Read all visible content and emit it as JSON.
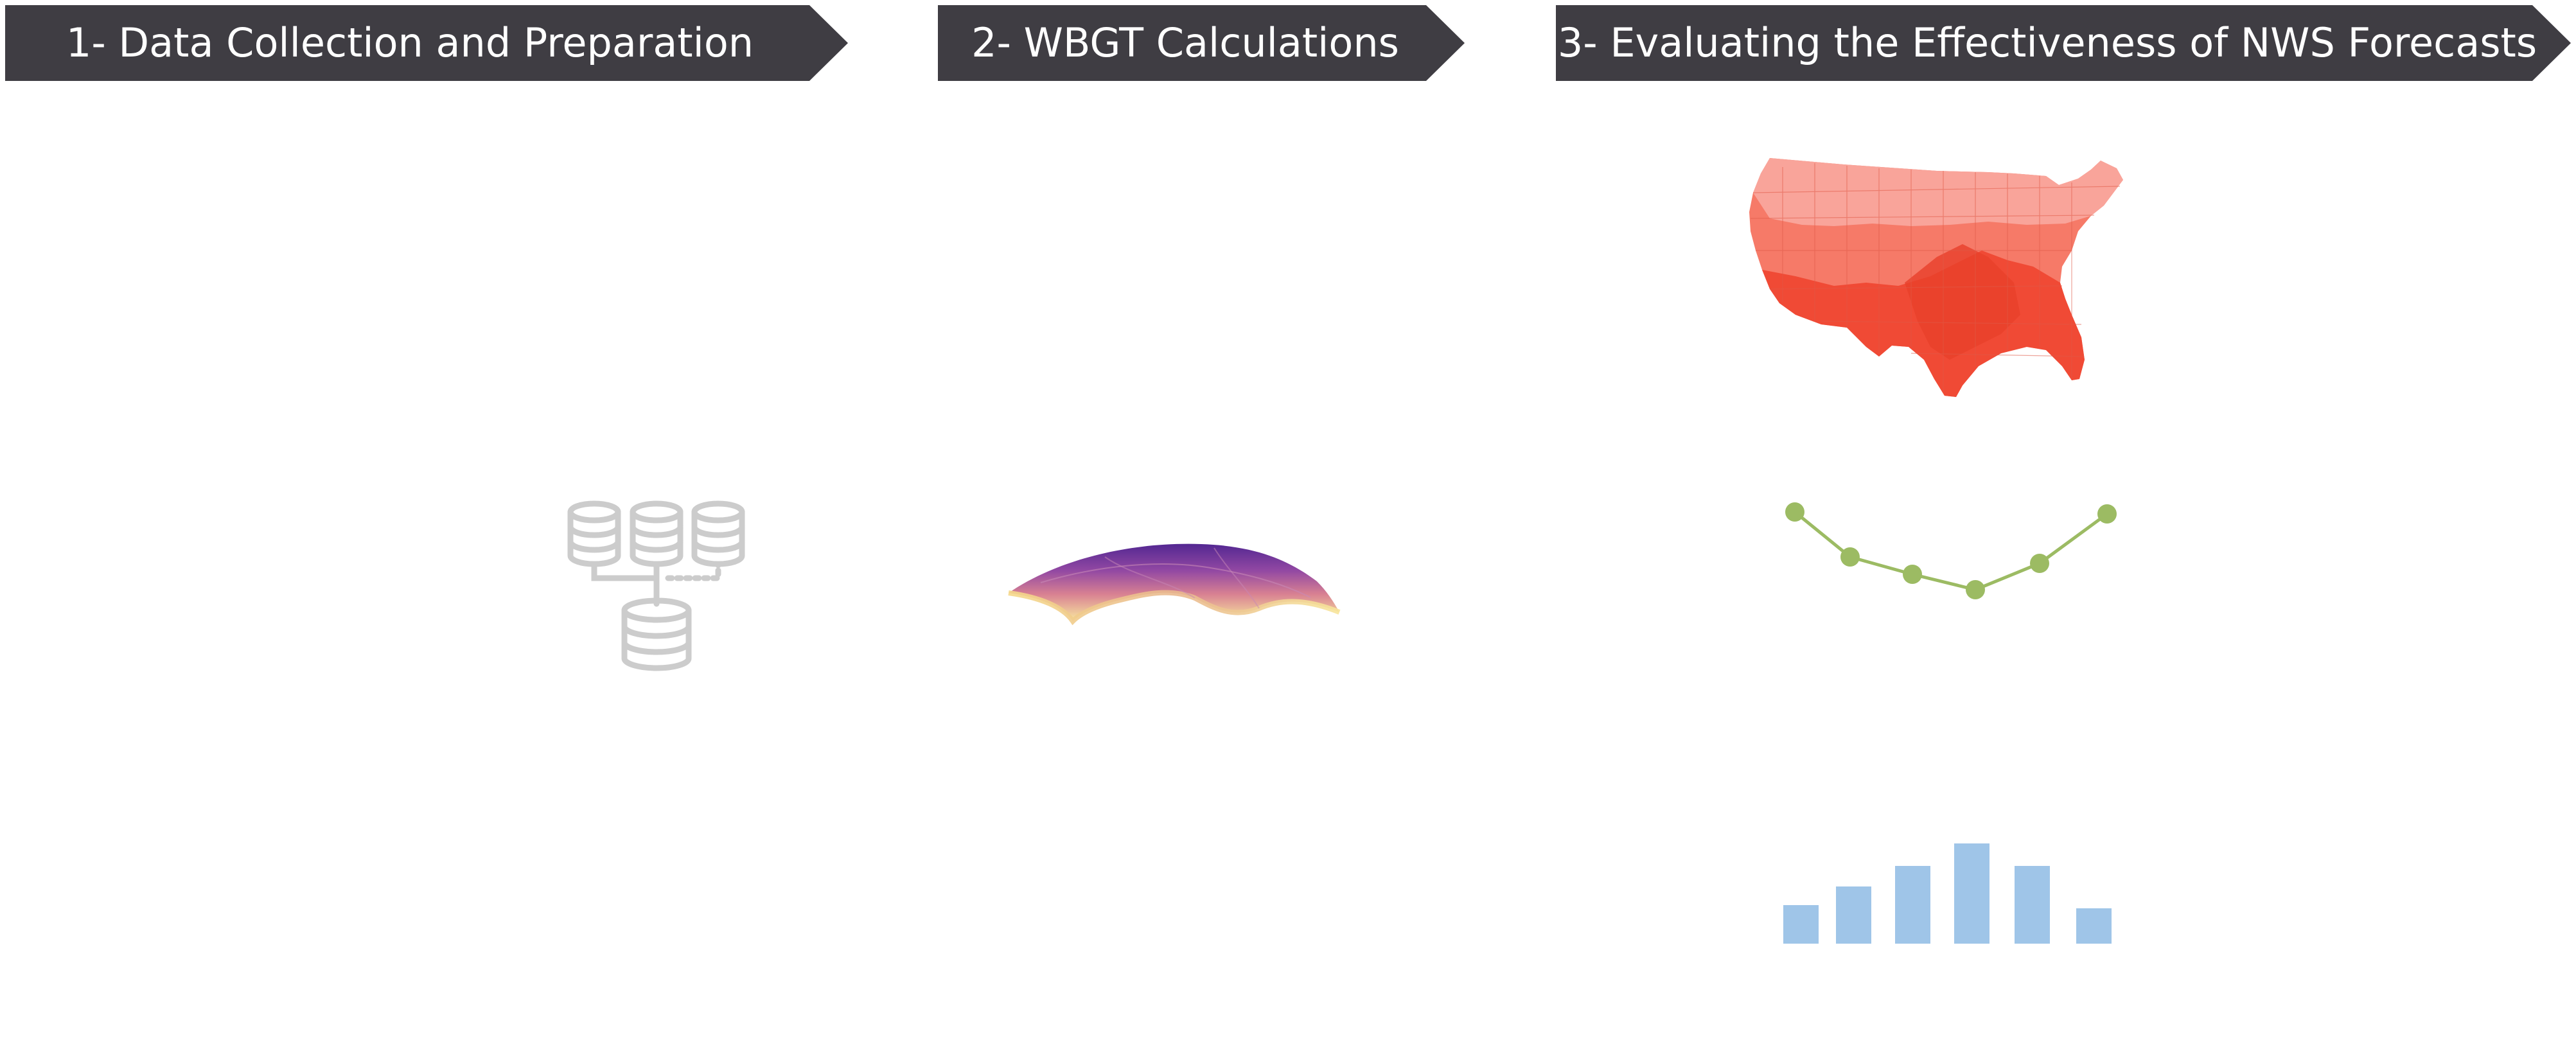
{
  "steps": [
    {
      "label": "1- Data Collection and Preparation"
    },
    {
      "label": "2- WBGT Calculations"
    },
    {
      "label": "3- Evaluating the Effectiveness of NWS Forecasts"
    }
  ],
  "icons": {
    "database": "database-merge-icon",
    "surface": "3d-surface-plot-icon",
    "map": "us-heat-map-icon",
    "line": "line-chart-icon",
    "bars": "bar-chart-icon"
  },
  "colors": {
    "banner": "#3f3d43",
    "banner_text": "#ffffff",
    "database": "#cccccc",
    "map_light": "#f9a49a",
    "map_mid": "#f67a68",
    "map_dark": "#f04a35",
    "line": "#9cbb63",
    "bars": "#9fc5e8"
  }
}
